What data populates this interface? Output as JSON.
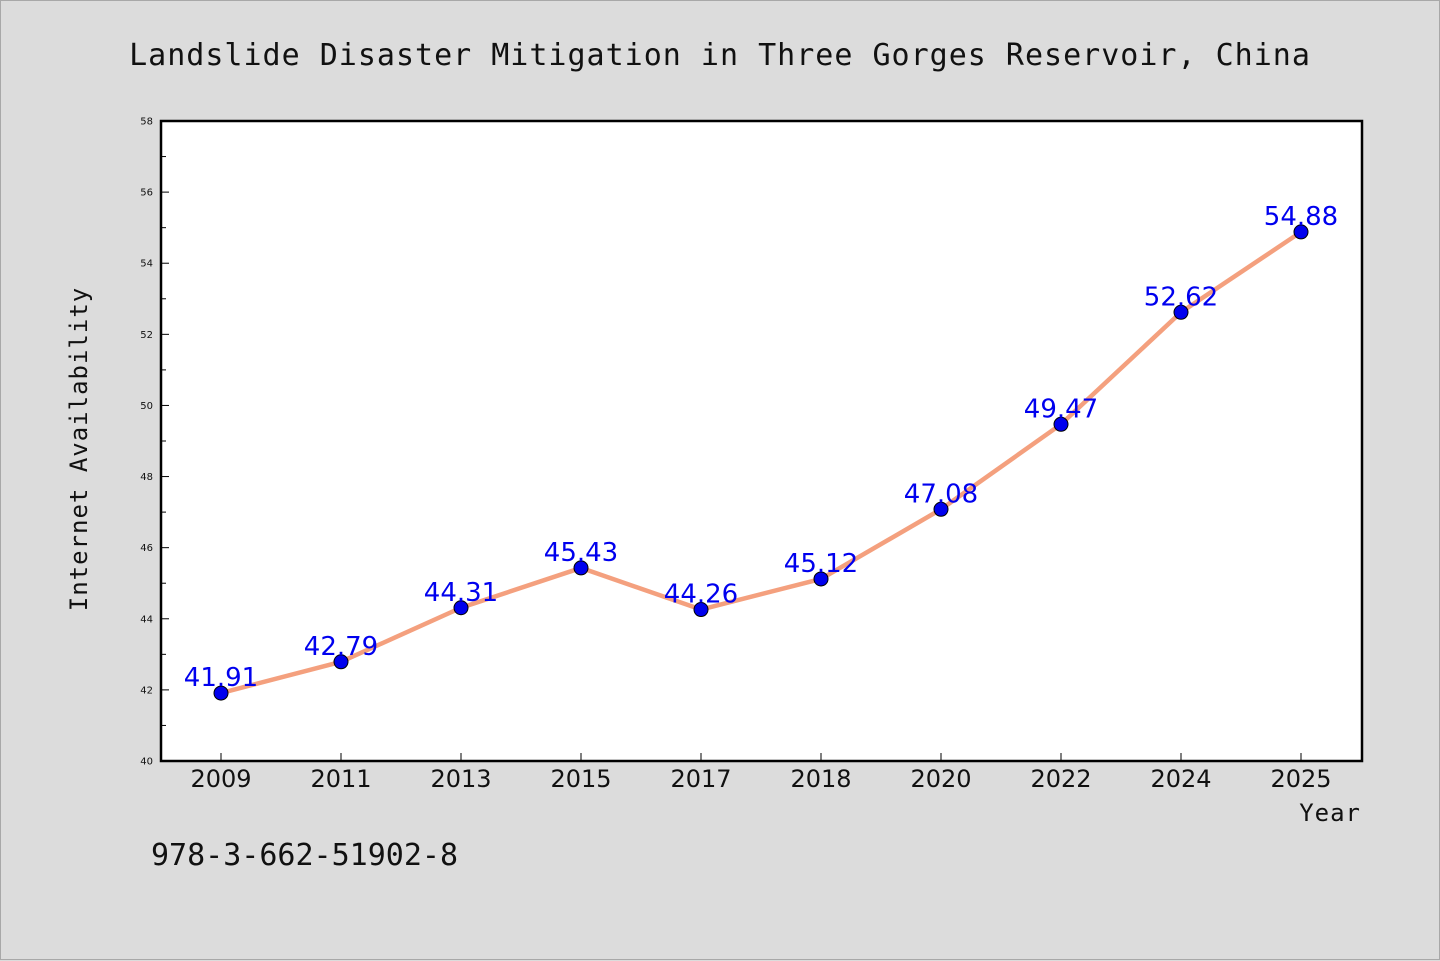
{
  "chart_data": {
    "type": "line",
    "title": "Landslide Disaster Mitigation in Three Gorges Reservoir, China",
    "xlabel": "Year",
    "ylabel": "Internet Availability",
    "categories": [
      "2009",
      "2011",
      "2013",
      "2015",
      "2017",
      "2018",
      "2020",
      "2022",
      "2024",
      "2025"
    ],
    "series": [
      {
        "values": [
          41.91,
          42.79,
          44.31,
          45.43,
          44.26,
          45.12,
          47.08,
          49.47,
          52.62,
          54.88
        ],
        "labels": [
          "41.91",
          "42.79",
          "44.31",
          "45.43",
          "44.26",
          "45.12",
          "47.08",
          "49.47",
          "52.62",
          "54.88"
        ],
        "line_color": "#f4a07e",
        "marker_color": "#0000ee"
      }
    ],
    "ylim": [
      40,
      58
    ],
    "yticks": [
      "40",
      "42",
      "44",
      "46",
      "48",
      "50",
      "52",
      "54",
      "56",
      "58"
    ],
    "grid": false,
    "legend": "none"
  },
  "footnote": "978-3-662-51902-8"
}
